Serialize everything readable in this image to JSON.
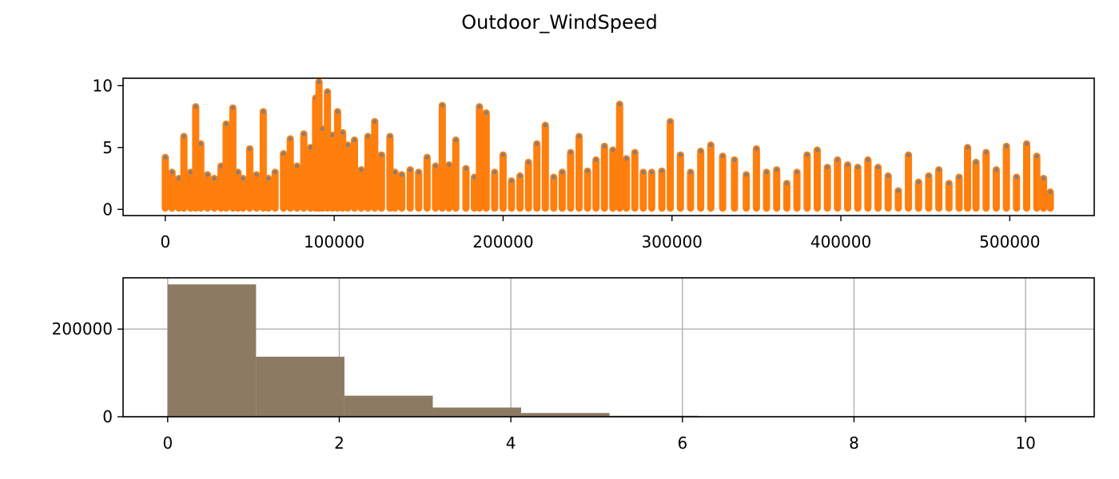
{
  "figure": {
    "title": "Outdoor_WindSpeed"
  },
  "chart_data": [
    {
      "type": "scatter",
      "title": "",
      "xlabel": "",
      "ylabel": "",
      "xlim": [
        -25000,
        550000
      ],
      "ylim": [
        -0.5,
        10.6
      ],
      "xticks": [
        0,
        100000,
        200000,
        300000,
        400000,
        500000
      ],
      "yticks": [
        0,
        5,
        10
      ],
      "grid": false,
      "colors": {
        "under": "#808080",
        "over": "#ff7f0e"
      },
      "series": [
        {
          "x": [
            0,
            4000,
            8000,
            11000,
            15000,
            18000,
            21000,
            25000,
            29000,
            33000,
            36000,
            40000,
            43000,
            46000,
            50000,
            54000,
            58000,
            61000,
            65000,
            70000,
            74000,
            78000,
            82000,
            86000,
            89000,
            91000,
            93000,
            96000,
            99000,
            102000,
            105000,
            108000,
            112000,
            116000,
            120000,
            124000,
            128000,
            133000,
            136000,
            140000,
            145000,
            150000,
            155000,
            160000,
            164000,
            168000,
            172000,
            178000,
            183000,
            186000,
            190000,
            195000,
            200000,
            205000,
            210000,
            215000,
            220000,
            225000,
            230000,
            235000,
            240000,
            245000,
            250000,
            255000,
            260000,
            265000,
            269000,
            273000,
            278000,
            283000,
            288000,
            294000,
            299000,
            305000,
            311000,
            317000,
            323000,
            330000,
            337000,
            344000,
            350000,
            356000,
            362000,
            368000,
            374000,
            380000,
            386000,
            392000,
            398000,
            404000,
            410000,
            416000,
            422000,
            428000,
            434000,
            440000,
            446000,
            452000,
            458000,
            464000,
            470000,
            475000,
            480000,
            486000,
            492000,
            498000,
            504000,
            510000,
            516000,
            520000,
            524000
          ],
          "y": [
            4.2,
            3.0,
            2.5,
            5.9,
            3.0,
            8.3,
            5.3,
            2.8,
            2.5,
            3.5,
            6.9,
            8.2,
            3.0,
            2.5,
            4.9,
            2.8,
            7.9,
            2.5,
            3.0,
            4.5,
            5.7,
            3.5,
            6.1,
            5.0,
            9.0,
            10.3,
            6.5,
            9.5,
            6.0,
            7.9,
            6.2,
            5.2,
            5.6,
            3.2,
            5.9,
            7.1,
            4.4,
            5.9,
            3.0,
            2.8,
            3.2,
            3.0,
            4.2,
            3.5,
            8.4,
            3.6,
            5.6,
            3.3,
            2.6,
            8.3,
            7.8,
            3.0,
            4.4,
            2.3,
            2.7,
            3.8,
            5.3,
            6.8,
            2.6,
            3.0,
            4.6,
            5.9,
            3.1,
            4.0,
            5.1,
            4.8,
            8.5,
            4.1,
            4.6,
            3.0,
            3.0,
            3.1,
            7.1,
            4.4,
            3.0,
            4.7,
            5.2,
            4.3,
            4.0,
            2.8,
            4.9,
            3.0,
            3.2,
            2.1,
            3.0,
            4.4,
            4.8,
            3.4,
            4.0,
            3.6,
            3.4,
            4.0,
            3.4,
            2.7,
            1.5,
            4.4,
            2.2,
            2.7,
            3.2,
            2.1,
            2.6,
            5.0,
            3.8,
            4.6,
            3.2,
            5.1,
            2.6,
            5.3,
            4.3,
            2.5,
            1.4
          ]
        }
      ]
    },
    {
      "type": "bar",
      "title": "",
      "xlabel": "",
      "ylabel": "",
      "xlim": [
        -0.52,
        10.8
      ],
      "ylim": [
        0,
        317000
      ],
      "xticks": [
        0,
        2,
        4,
        6,
        8,
        10
      ],
      "yticks": [
        0,
        200000
      ],
      "grid": true,
      "color": "#8c7b62",
      "bin_edges": [
        0,
        1.03,
        2.06,
        3.09,
        4.12,
        5.15,
        6.18,
        7.21,
        8.24,
        9.27,
        10.3
      ],
      "values": [
        302000,
        137000,
        48000,
        21000,
        8500,
        2200,
        500,
        150,
        60,
        20
      ]
    }
  ]
}
